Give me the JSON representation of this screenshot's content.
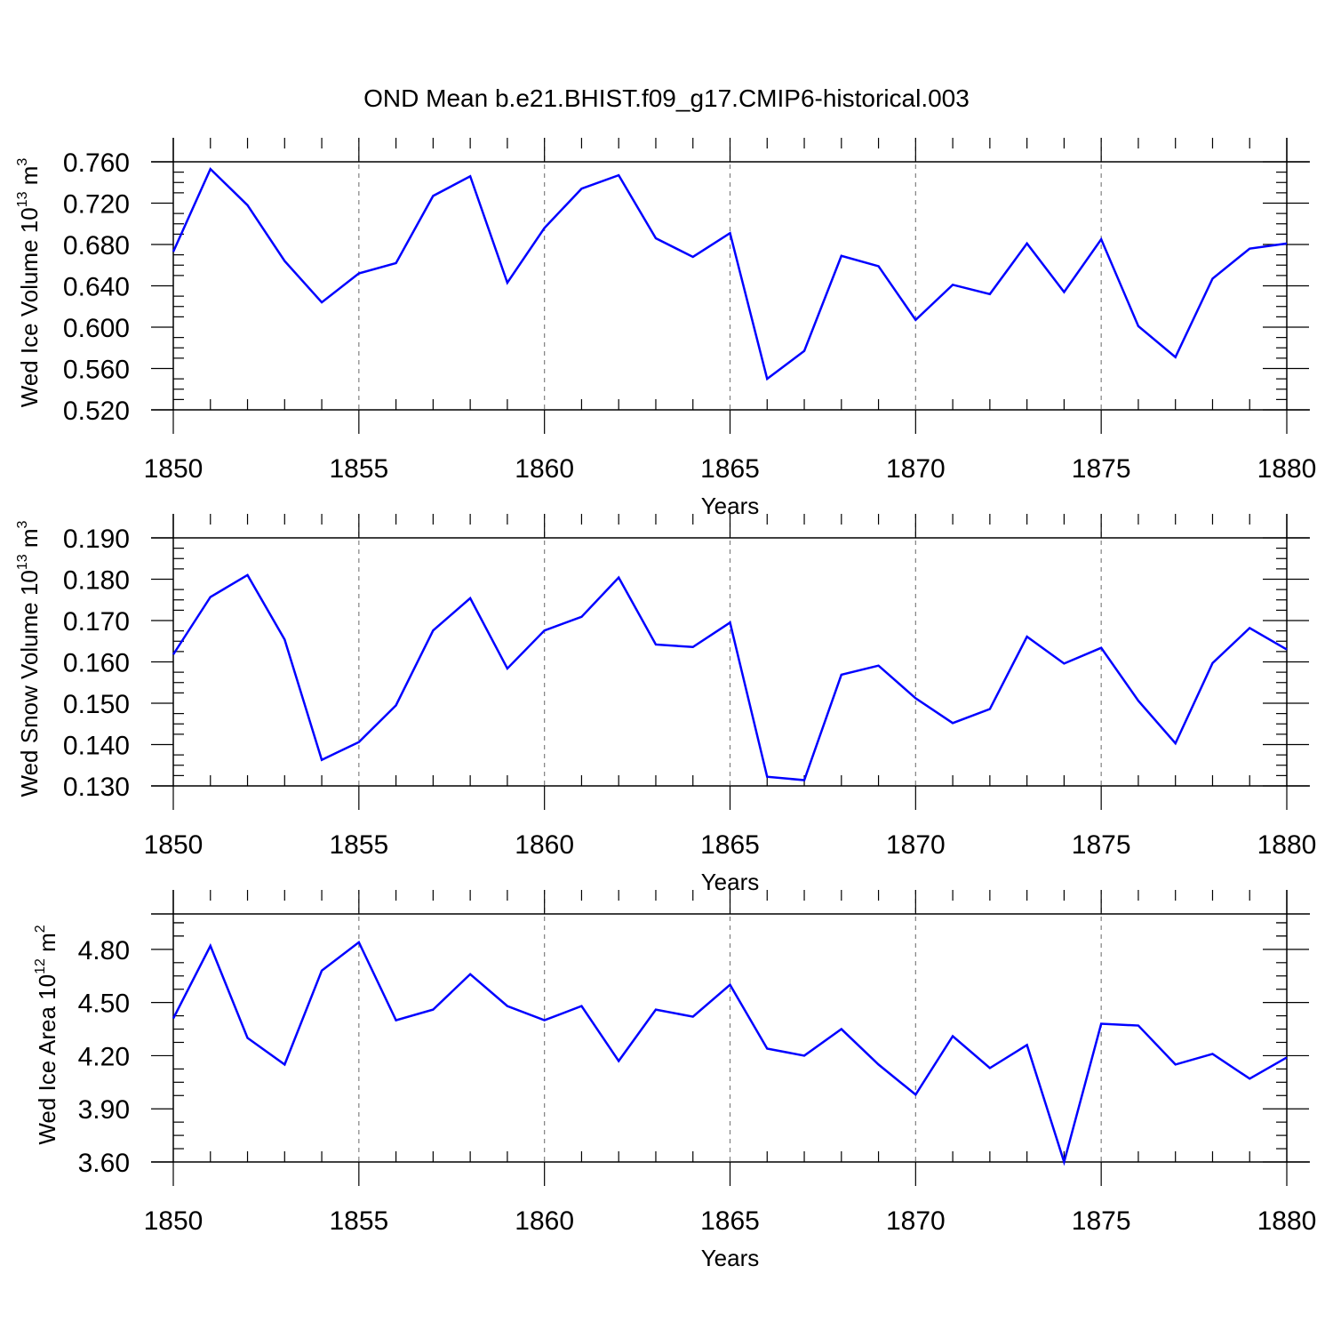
{
  "title": "OND Mean b.e21.BHIST.f09_g17.CMIP6-historical.003",
  "style": {
    "line_color": "#0000ff",
    "axis_color": "#000000",
    "grid_color": "#808080"
  },
  "chart_data": [
    {
      "type": "line",
      "title": "OND Mean b.e21.BHIST.f09_g17.CMIP6-historical.003",
      "xlabel": "Years",
      "ylabel_main": "Wed Ice Volume 10",
      "ylabel_exp": "13",
      "ylabel_unit": " m",
      "ylabel_unit_exp": "3",
      "xlim": [
        1850,
        1880
      ],
      "ylim": [
        0.52,
        0.76
      ],
      "x_ticks": [
        1850,
        1855,
        1860,
        1865,
        1870,
        1875,
        1880
      ],
      "x_tick_labels": [
        "1850",
        "1855",
        "1860",
        "1865",
        "1870",
        "1875",
        "1880"
      ],
      "y_ticks": [
        0.52,
        0.56,
        0.6,
        0.64,
        0.68,
        0.72,
        0.76
      ],
      "y_tick_labels": [
        "0.520",
        "0.560",
        "0.600",
        "0.640",
        "0.680",
        "0.720",
        "0.760"
      ],
      "grid": "vertical dashed at major x ticks",
      "x": [
        1850,
        1851,
        1852,
        1853,
        1854,
        1855,
        1856,
        1857,
        1858,
        1859,
        1860,
        1861,
        1862,
        1863,
        1864,
        1865,
        1866,
        1867,
        1868,
        1869,
        1870,
        1871,
        1872,
        1873,
        1874,
        1875,
        1876,
        1877,
        1878,
        1879,
        1880
      ],
      "values": [
        0.673,
        0.753,
        0.718,
        0.664,
        0.624,
        0.652,
        0.662,
        0.727,
        0.746,
        0.643,
        0.696,
        0.734,
        0.747,
        0.686,
        0.668,
        0.691,
        0.55,
        0.577,
        0.669,
        0.659,
        0.607,
        0.641,
        0.632,
        0.681,
        0.634,
        0.685,
        0.601,
        0.571,
        0.647,
        0.676,
        0.681
      ]
    },
    {
      "type": "line",
      "xlabel": "Years",
      "ylabel_main": "Wed Snow Volume 10",
      "ylabel_exp": "13",
      "ylabel_unit": " m",
      "ylabel_unit_exp": "3",
      "xlim": [
        1850,
        1880
      ],
      "ylim": [
        0.13,
        0.19
      ],
      "x_ticks": [
        1850,
        1855,
        1860,
        1865,
        1870,
        1875,
        1880
      ],
      "x_tick_labels": [
        "1850",
        "1855",
        "1860",
        "1865",
        "1870",
        "1875",
        "1880"
      ],
      "y_ticks": [
        0.13,
        0.14,
        0.15,
        0.16,
        0.17,
        0.18,
        0.19
      ],
      "y_tick_labels": [
        "0.130",
        "0.140",
        "0.150",
        "0.160",
        "0.170",
        "0.180",
        "0.190"
      ],
      "grid": "vertical dashed at major x ticks",
      "x": [
        1850,
        1851,
        1852,
        1853,
        1854,
        1855,
        1856,
        1857,
        1858,
        1859,
        1860,
        1861,
        1862,
        1863,
        1864,
        1865,
        1866,
        1867,
        1868,
        1869,
        1870,
        1871,
        1872,
        1873,
        1874,
        1875,
        1876,
        1877,
        1878,
        1879,
        1880
      ],
      "values": [
        0.1618,
        0.1757,
        0.181,
        0.1654,
        0.1363,
        0.1406,
        0.1495,
        0.1676,
        0.1754,
        0.1584,
        0.1676,
        0.1709,
        0.1804,
        0.1642,
        0.1636,
        0.1695,
        0.1322,
        0.1314,
        0.1569,
        0.1591,
        0.1512,
        0.1452,
        0.1486,
        0.1661,
        0.1596,
        0.1634,
        0.1506,
        0.1403,
        0.1597,
        0.1682,
        0.163
      ]
    },
    {
      "type": "line",
      "xlabel": "Years",
      "ylabel_main": "Wed Ice Area 10",
      "ylabel_exp": "12",
      "ylabel_unit": " m",
      "ylabel_unit_exp": "2",
      "xlim": [
        1850,
        1880
      ],
      "ylim": [
        3.6,
        5.0
      ],
      "x_ticks": [
        1850,
        1855,
        1860,
        1865,
        1870,
        1875,
        1880
      ],
      "x_tick_labels": [
        "1850",
        "1855",
        "1860",
        "1865",
        "1870",
        "1875",
        "1880"
      ],
      "y_ticks": [
        3.6,
        3.9,
        4.2,
        4.5,
        4.8
      ],
      "y_tick_labels": [
        "3.60",
        "3.90",
        "4.20",
        "4.50",
        "4.80"
      ],
      "grid": "vertical dashed at major x ticks",
      "x": [
        1850,
        1851,
        1852,
        1853,
        1854,
        1855,
        1856,
        1857,
        1858,
        1859,
        1860,
        1861,
        1862,
        1863,
        1864,
        1865,
        1866,
        1867,
        1868,
        1869,
        1870,
        1871,
        1872,
        1873,
        1874,
        1875,
        1876,
        1877,
        1878,
        1879,
        1880
      ],
      "values": [
        4.41,
        4.82,
        4.3,
        4.15,
        4.68,
        4.84,
        4.4,
        4.46,
        4.66,
        4.48,
        4.4,
        4.48,
        4.17,
        4.46,
        4.42,
        4.6,
        4.24,
        4.2,
        4.35,
        4.15,
        3.98,
        4.31,
        4.13,
        4.26,
        3.6,
        4.38,
        4.37,
        4.15,
        4.21,
        4.07,
        4.19
      ]
    }
  ]
}
